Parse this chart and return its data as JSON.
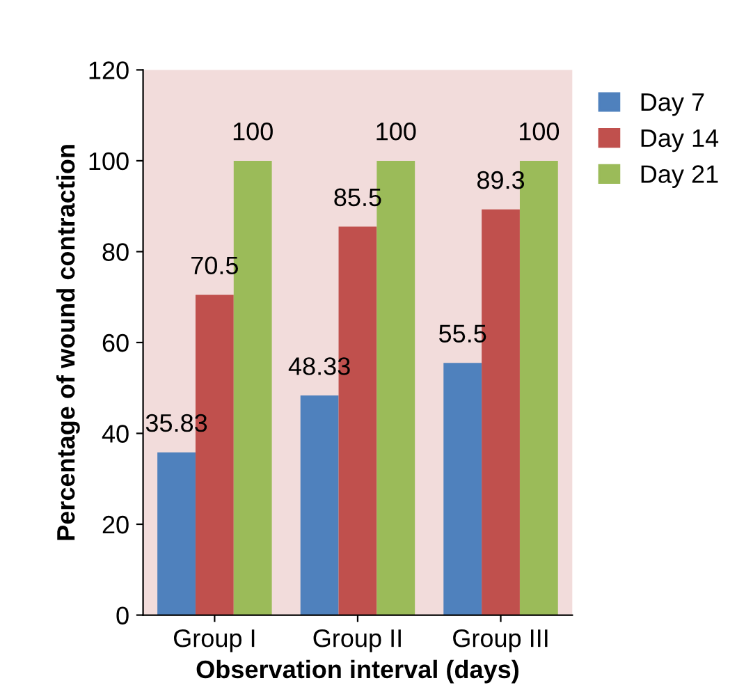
{
  "chart_data": {
    "type": "bar",
    "xlabel": "Observation interval (days)",
    "ylabel": "Percentage of wound contraction",
    "categories": [
      "Group I",
      "Group II",
      "Group III"
    ],
    "series": [
      {
        "name": "Day 7",
        "color": "#4f81bd",
        "values": [
          35.83,
          48.33,
          55.5
        ]
      },
      {
        "name": "Day 14",
        "color": "#c0504d",
        "values": [
          70.5,
          85.5,
          89.3
        ]
      },
      {
        "name": "Day 21",
        "color": "#9bbb59",
        "values": [
          100,
          100,
          100
        ]
      }
    ],
    "ylim": [
      0,
      120
    ],
    "yticks": [
      0,
      20,
      40,
      60,
      80,
      100,
      120
    ],
    "grid": false,
    "legend": "top right",
    "data_labels": true
  }
}
